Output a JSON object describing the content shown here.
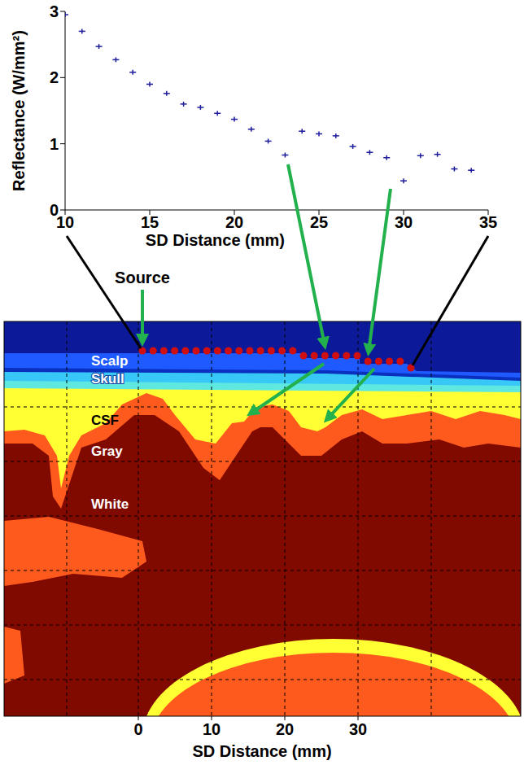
{
  "chart_data": {
    "type": "scatter",
    "x_label": "SD Distance (mm)",
    "y_label": "Reflectance (W/mm²)",
    "x": [
      10,
      11,
      12,
      13,
      14,
      15,
      16,
      17,
      18,
      19,
      20,
      21,
      22,
      23,
      24,
      25,
      26,
      27,
      28,
      29,
      30,
      31,
      32,
      33,
      34
    ],
    "values": [
      2.95,
      2.7,
      2.47,
      2.27,
      2.08,
      1.9,
      1.76,
      1.6,
      1.55,
      1.46,
      1.37,
      1.22,
      1.04,
      0.83,
      1.19,
      1.15,
      1.12,
      0.96,
      0.87,
      0.79,
      0.44,
      0.82,
      0.84,
      0.62,
      0.6
    ],
    "xlim": [
      10,
      35
    ],
    "ylim": [
      0,
      3
    ],
    "xticks": [
      10,
      15,
      20,
      25,
      30,
      35
    ],
    "yticks": [
      0,
      1,
      2,
      3
    ],
    "color": "#1c1c9c",
    "marker": "plus",
    "grid": false
  },
  "diagram": {
    "source_label": "Source",
    "layers": [
      "Scalp",
      "Skull",
      "CSF",
      "Gray",
      "White"
    ],
    "x_label": "SD Distance (mm)",
    "xticks": [
      0,
      10,
      20,
      30
    ]
  }
}
